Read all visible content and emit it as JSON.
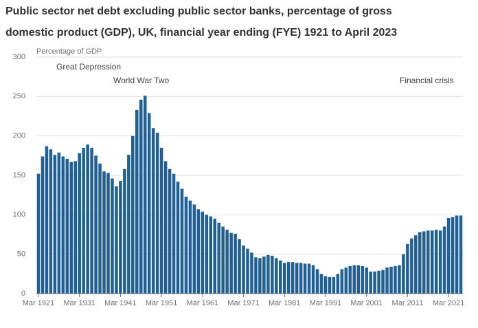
{
  "chart_data": {
    "type": "bar",
    "title_lines": [
      "Public sector net debt excluding public sector banks, percentage of gross",
      "domestic product (GDP), UK, financial year ending (FYE) 1921 to April 2023"
    ],
    "y_label": "Percentage of GDP",
    "annotations": [
      "Great Depression",
      "World War Two",
      "Financial crisis"
    ],
    "categories": [
      "Mar 1921",
      null,
      null,
      null,
      null,
      null,
      null,
      null,
      null,
      null,
      "Mar 1931",
      null,
      null,
      null,
      null,
      null,
      null,
      null,
      null,
      null,
      "Mar 1941",
      null,
      null,
      null,
      null,
      null,
      null,
      null,
      null,
      null,
      "Mar 1951",
      null,
      null,
      null,
      null,
      null,
      null,
      null,
      null,
      null,
      "Mar 1961",
      null,
      null,
      null,
      null,
      null,
      null,
      null,
      null,
      null,
      "Mar 1971",
      null,
      null,
      null,
      null,
      null,
      null,
      null,
      null,
      null,
      "Mar 1981",
      null,
      null,
      null,
      null,
      null,
      null,
      null,
      null,
      null,
      "Mar 1991",
      null,
      null,
      null,
      null,
      null,
      null,
      null,
      null,
      null,
      "Mar 2001",
      null,
      null,
      null,
      null,
      null,
      null,
      null,
      null,
      null,
      "Mar 2011",
      null,
      null,
      null,
      null,
      null,
      null,
      null,
      null,
      null,
      "Mar 2021",
      null,
      null,
      null
    ],
    "values": [
      152,
      174,
      187,
      183,
      176,
      179,
      174,
      171,
      167,
      168,
      178,
      185,
      189,
      185,
      175,
      165,
      155,
      153,
      146,
      136,
      143,
      158,
      176,
      200,
      233,
      246,
      251,
      229,
      210,
      204,
      185,
      168,
      158,
      152,
      142,
      133,
      123,
      118,
      113,
      107,
      104,
      100,
      98,
      95,
      90,
      85,
      81,
      77,
      76,
      69,
      61,
      57,
      52,
      46,
      45,
      47,
      49,
      48,
      45,
      42,
      39,
      40,
      40,
      39,
      39,
      38,
      38,
      36,
      31,
      25,
      22,
      21,
      21,
      25,
      31,
      33,
      35,
      36,
      36,
      35,
      33,
      28,
      28,
      29,
      30,
      33,
      34,
      35,
      36,
      50,
      63,
      70,
      74,
      78,
      79,
      80,
      80,
      81,
      80,
      85,
      96,
      97,
      99,
      99
    ],
    "color": "#206095",
    "ylim": [
      0,
      300
    ],
    "yticks": [
      0,
      50,
      100,
      150,
      200,
      250,
      300
    ],
    "grid": true
  }
}
